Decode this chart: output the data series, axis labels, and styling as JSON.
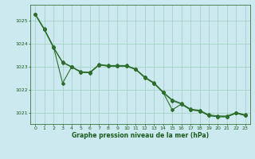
{
  "background_color": "#cde9f0",
  "grid_color": "#9ecfbf",
  "line_color": "#2d6e2d",
  "xlabel": "Graphe pression niveau de la mer (hPa)",
  "xlabel_color": "#1a5c1a",
  "tick_color": "#1a5c1a",
  "xlim": [
    -0.5,
    23.5
  ],
  "ylim": [
    1020.5,
    1025.7
  ],
  "yticks": [
    1021,
    1022,
    1023,
    1024,
    1025
  ],
  "xticks": [
    0,
    1,
    2,
    3,
    4,
    5,
    6,
    7,
    8,
    9,
    10,
    11,
    12,
    13,
    14,
    15,
    16,
    17,
    18,
    19,
    20,
    21,
    22,
    23
  ],
  "series1": [
    1025.3,
    1024.65,
    1023.85,
    1023.2,
    1023.0,
    1022.78,
    1022.75,
    1023.1,
    1023.05,
    1023.05,
    1023.05,
    1022.9,
    1022.55,
    1022.3,
    1021.9,
    1021.55,
    1021.4,
    1021.15,
    1021.1,
    1020.9,
    1020.85,
    1020.85,
    1021.0,
    1020.9
  ],
  "series2": [
    1025.28,
    1024.62,
    1023.83,
    1023.18,
    1022.98,
    1022.76,
    1022.73,
    1023.08,
    1023.03,
    1023.03,
    1023.03,
    1022.88,
    1022.53,
    1022.28,
    1021.88,
    1021.12,
    1021.37,
    1021.12,
    1021.07,
    1020.87,
    1020.82,
    1020.82,
    1020.97,
    1020.87
  ],
  "series3": [
    1025.28,
    1024.62,
    1023.88,
    1022.28,
    1023.0,
    1022.75,
    1022.76,
    1023.08,
    1023.02,
    1023.02,
    1023.02,
    1022.88,
    1022.52,
    1022.27,
    1021.87,
    1021.52,
    1021.37,
    1021.12,
    1021.07,
    1020.87,
    1020.82,
    1020.82,
    1020.97,
    1020.87
  ]
}
